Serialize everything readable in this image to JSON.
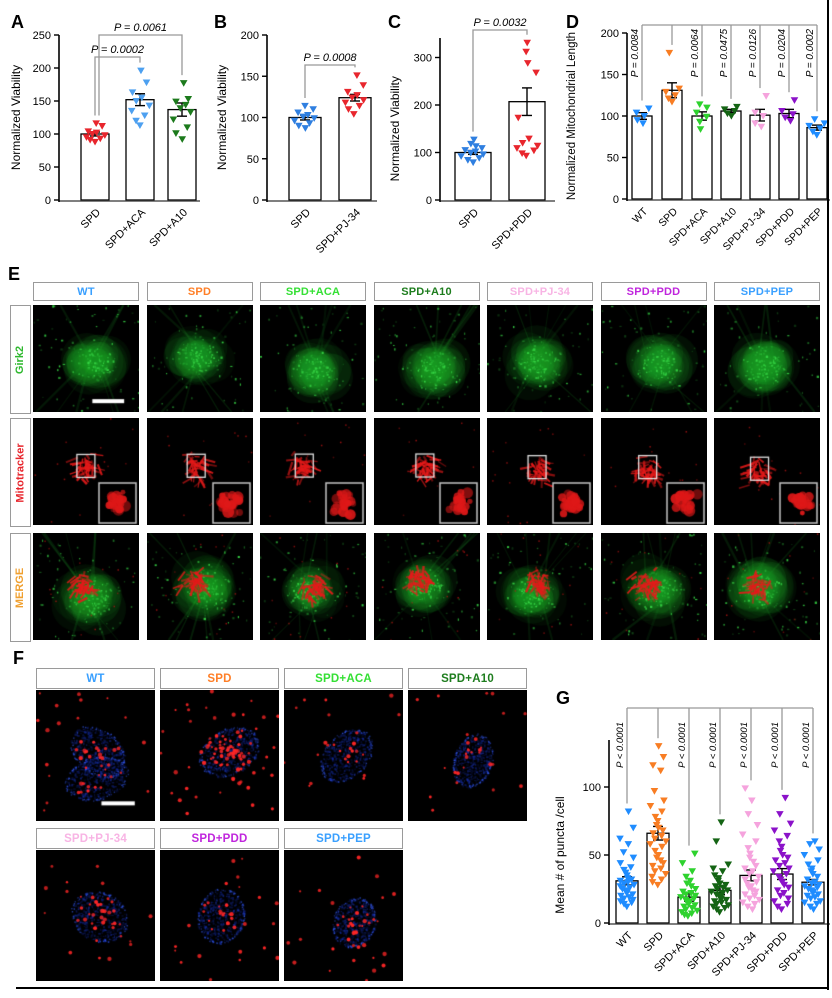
{
  "panels": {
    "a": "A",
    "b": "B",
    "c": "C",
    "d": "D",
    "e": "E",
    "f": "F",
    "g": "G"
  },
  "charts": {
    "A": {
      "type": "bar-scatter",
      "ylabel": "Normalized Viability",
      "ylim": [
        0,
        250
      ],
      "yticks": [
        0,
        50,
        100,
        150,
        200,
        250
      ],
      "categories": [
        "SPD",
        "SPD+ACA",
        "SPD+A10"
      ],
      "series": [
        {
          "name": "SPD",
          "color": "#e8262d",
          "mean": 100,
          "sem": 3,
          "points": [
            88,
            91,
            93,
            95,
            98,
            100,
            102,
            104,
            112,
            116
          ]
        },
        {
          "name": "SPD+ACA",
          "color": "#4da0f0",
          "mean": 152,
          "sem": 9,
          "points": [
            113,
            120,
            128,
            135,
            143,
            150,
            155,
            163,
            178,
            196
          ]
        },
        {
          "name": "SPD+A10",
          "color": "#1c7a1c",
          "mean": 137,
          "sem": 10,
          "points": [
            92,
            101,
            110,
            122,
            133,
            139,
            144,
            149,
            153,
            177
          ]
        }
      ],
      "brackets": [
        {
          "from": 0,
          "to": 1,
          "label": "P = 0.0002"
        },
        {
          "from": 0,
          "to": 2,
          "label": "P = 0.0061"
        }
      ]
    },
    "B": {
      "type": "bar-scatter",
      "ylabel": "Normalized Viability",
      "ylim": [
        0,
        200
      ],
      "yticks": [
        0,
        50,
        100,
        150,
        200
      ],
      "categories": [
        "SPD",
        "SPD+PJ-34"
      ],
      "series": [
        {
          "name": "SPD",
          "color": "#2f7fe0",
          "mean": 100,
          "sem": 3,
          "points": [
            87,
            90,
            93,
            96,
            99,
            101,
            103,
            106,
            110,
            114
          ]
        },
        {
          "name": "SPD+PJ-34",
          "color": "#e8262d",
          "mean": 124,
          "sem": 4,
          "points": [
            104,
            110,
            114,
            118,
            121,
            124,
            127,
            131,
            139,
            151
          ]
        }
      ],
      "brackets": [
        {
          "from": 0,
          "to": 1,
          "label": "P = 0.0008"
        }
      ]
    },
    "C": {
      "type": "bar-scatter",
      "ylabel": "Normalized Viability",
      "ylim": [
        0,
        300
      ],
      "yticks": [
        0,
        100,
        200,
        300
      ],
      "categories": [
        "SPD",
        "SPD+PDD"
      ],
      "series": [
        {
          "name": "SPD",
          "color": "#2f7fe0",
          "mean": 100,
          "sem": 4,
          "points": [
            79,
            84,
            88,
            92,
            96,
            99,
            102,
            105,
            109,
            113,
            118,
            127
          ]
        },
        {
          "name": "SPD+PDD",
          "color": "#e8262d",
          "mean": 207,
          "sem": 29,
          "points": [
            93,
            98,
            104,
            109,
            114,
            120,
            129,
            173,
            268,
            288,
            312,
            331
          ]
        }
      ],
      "brackets": [
        {
          "from": 0,
          "to": 1,
          "label": "P = 0.0032"
        }
      ]
    },
    "D": {
      "type": "bar-scatter",
      "ylabel": "Normalized Mitochondrial Length",
      "ylim": [
        0,
        200
      ],
      "yticks": [
        0,
        50,
        100,
        150,
        200
      ],
      "categories": [
        "WT",
        "SPD",
        "SPD+ACA",
        "SPD+A10",
        "SPD+PJ-34",
        "SPD+PDD",
        "SPD+PEP"
      ],
      "series": [
        {
          "name": "WT",
          "color": "#1f8cff",
          "mean": 100,
          "sem": 4,
          "points": [
            91,
            95,
            100,
            104,
            109
          ]
        },
        {
          "name": "SPD",
          "color": "#f87d23",
          "mean": 131,
          "sem": 9,
          "points": [
            117,
            121,
            125,
            129,
            133,
            176
          ]
        },
        {
          "name": "SPD+ACA",
          "color": "#2ed22e",
          "mean": 100,
          "sem": 5,
          "points": [
            84,
            93,
            99,
            104,
            110,
            114
          ]
        },
        {
          "name": "SPD+A10",
          "color": "#146414",
          "mean": 106,
          "sem": 2,
          "points": [
            100,
            103,
            106,
            108,
            111
          ]
        },
        {
          "name": "SPD+PJ-34",
          "color": "#f5a3dd",
          "mean": 101,
          "sem": 7,
          "points": [
            87,
            91,
            100,
            104,
            124
          ]
        },
        {
          "name": "SPD+PDD",
          "color": "#8b12c9",
          "mean": 103,
          "sem": 5,
          "points": [
            94,
            98,
            102,
            106,
            119
          ]
        },
        {
          "name": "SPD+PEP",
          "color": "#1f8cff",
          "mean": 86,
          "sem": 3,
          "points": [
            77,
            81,
            85,
            88,
            91,
            96
          ]
        }
      ],
      "fan": {
        "baseline": 1,
        "labels": {
          "0": "P = 0.0084",
          "2": "P = 0.0064",
          "3": "P = 0.0475",
          "4": "P = 0.0126",
          "5": "P = 0.0204",
          "6": "P = 0.0002"
        }
      }
    },
    "G": {
      "type": "bar-scatter",
      "ylabel": "Mean # of puncta /cell",
      "ylim": [
        0,
        100
      ],
      "yticks": [
        0,
        50,
        100
      ],
      "categories": [
        "WT",
        "SPD",
        "SPD+ACA",
        "SPD+A10",
        "SPD+PJ-34",
        "SPD+PDD",
        "SPD+PEP"
      ],
      "series": [
        {
          "name": "WT",
          "color": "#1f8cff",
          "mean": 31,
          "sem": 3,
          "points": [
            12,
            14,
            15,
            16,
            17,
            18,
            19,
            20,
            21,
            22,
            23,
            24,
            25,
            26,
            27,
            28,
            29,
            30,
            31,
            32,
            33,
            35,
            37,
            39,
            41,
            44,
            48,
            52,
            58,
            62,
            70,
            82
          ]
        },
        {
          "name": "SPD",
          "color": "#f87d23",
          "mean": 66,
          "sem": 5,
          "points": [
            28,
            30,
            32,
            34,
            36,
            38,
            40,
            42,
            44,
            46,
            48,
            50,
            53,
            56,
            58,
            60,
            62,
            64,
            66,
            68,
            70,
            72,
            75,
            78,
            82,
            86,
            90,
            97,
            112,
            116,
            122,
            130
          ]
        },
        {
          "name": "SPD+ACA",
          "color": "#2ed22e",
          "mean": 19,
          "sem": 3,
          "points": [
            5,
            6,
            7,
            8,
            9,
            10,
            11,
            12,
            13,
            14,
            15,
            16,
            17,
            18,
            19,
            20,
            21,
            22,
            23,
            25,
            27,
            29,
            31,
            34,
            38,
            44,
            51
          ]
        },
        {
          "name": "SPD+A10",
          "color": "#146414",
          "mean": 24,
          "sem": 3,
          "points": [
            8,
            10,
            11,
            12,
            13,
            14,
            15,
            16,
            17,
            18,
            19,
            20,
            21,
            22,
            23,
            24,
            25,
            26,
            27,
            28,
            29,
            31,
            33,
            35,
            38,
            40,
            43,
            60,
            74
          ]
        },
        {
          "name": "SPD+PJ-34",
          "color": "#f5a3dd",
          "mean": 35,
          "sem": 4,
          "points": [
            10,
            12,
            14,
            15,
            17,
            18,
            20,
            21,
            23,
            24,
            26,
            27,
            29,
            30,
            32,
            34,
            36,
            38,
            40,
            42,
            45,
            48,
            51,
            55,
            60,
            65,
            72,
            80,
            90,
            99
          ]
        },
        {
          "name": "SPD+PDD",
          "color": "#8b12c9",
          "mean": 36,
          "sem": 4,
          "points": [
            10,
            12,
            14,
            16,
            18,
            20,
            22,
            24,
            26,
            28,
            30,
            32,
            34,
            36,
            38,
            40,
            42,
            44,
            46,
            48,
            50,
            53,
            56,
            60,
            64,
            68,
            73,
            80,
            92
          ]
        },
        {
          "name": "SPD+PEP",
          "color": "#1f8cff",
          "mean": 30,
          "sem": 2,
          "points": [
            10,
            12,
            14,
            15,
            16,
            18,
            19,
            20,
            21,
            22,
            23,
            24,
            25,
            26,
            27,
            28,
            29,
            30,
            32,
            34,
            36,
            38,
            40,
            43,
            46,
            50,
            54,
            58,
            60
          ]
        }
      ],
      "fan": {
        "baseline": 1,
        "labels": {
          "0": "P < 0.0001",
          "2": "P < 0.0001",
          "3": "P < 0.0001",
          "4": "P < 0.0001",
          "5": "P < 0.0001",
          "6": "P < 0.0001"
        }
      }
    }
  },
  "panel_e": {
    "columns": [
      {
        "label": "WT",
        "color": "#3aa0ff"
      },
      {
        "label": "SPD",
        "color": "#ff7f27"
      },
      {
        "label": "SPD+ACA",
        "color": "#35e035"
      },
      {
        "label": "SPD+A10",
        "color": "#1e7d1e"
      },
      {
        "label": "SPD+PJ-34",
        "color": "#f8b4e4"
      },
      {
        "label": "SPD+PDD",
        "color": "#c026dd"
      },
      {
        "label": "SPD+PEP",
        "color": "#3aa0ff"
      }
    ],
    "rows": [
      {
        "label": "Girk2",
        "color": "#2eb82e",
        "kind": "girk2"
      },
      {
        "label": "Mitotracker",
        "color": "#e8262d",
        "kind": "mito"
      },
      {
        "label": "MERGE",
        "color": "#f0a030",
        "kind": "merge"
      }
    ]
  },
  "panel_f": {
    "rows": [
      [
        {
          "label": "WT",
          "color": "#3aa0ff",
          "puncta": 50
        },
        {
          "label": "SPD",
          "color": "#ff7f27",
          "puncta": 95
        },
        {
          "label": "SPD+ACA",
          "color": "#35e035",
          "puncta": 26
        },
        {
          "label": "SPD+A10",
          "color": "#1e7d1e",
          "puncta": 28
        }
      ],
      [
        {
          "label": "SPD+PJ-34",
          "color": "#f8b4e4",
          "puncta": 42
        },
        {
          "label": "SPD+PDD",
          "color": "#c026dd",
          "puncta": 40
        },
        {
          "label": "SPD+PEP",
          "color": "#3aa0ff",
          "puncta": 42
        }
      ]
    ]
  }
}
